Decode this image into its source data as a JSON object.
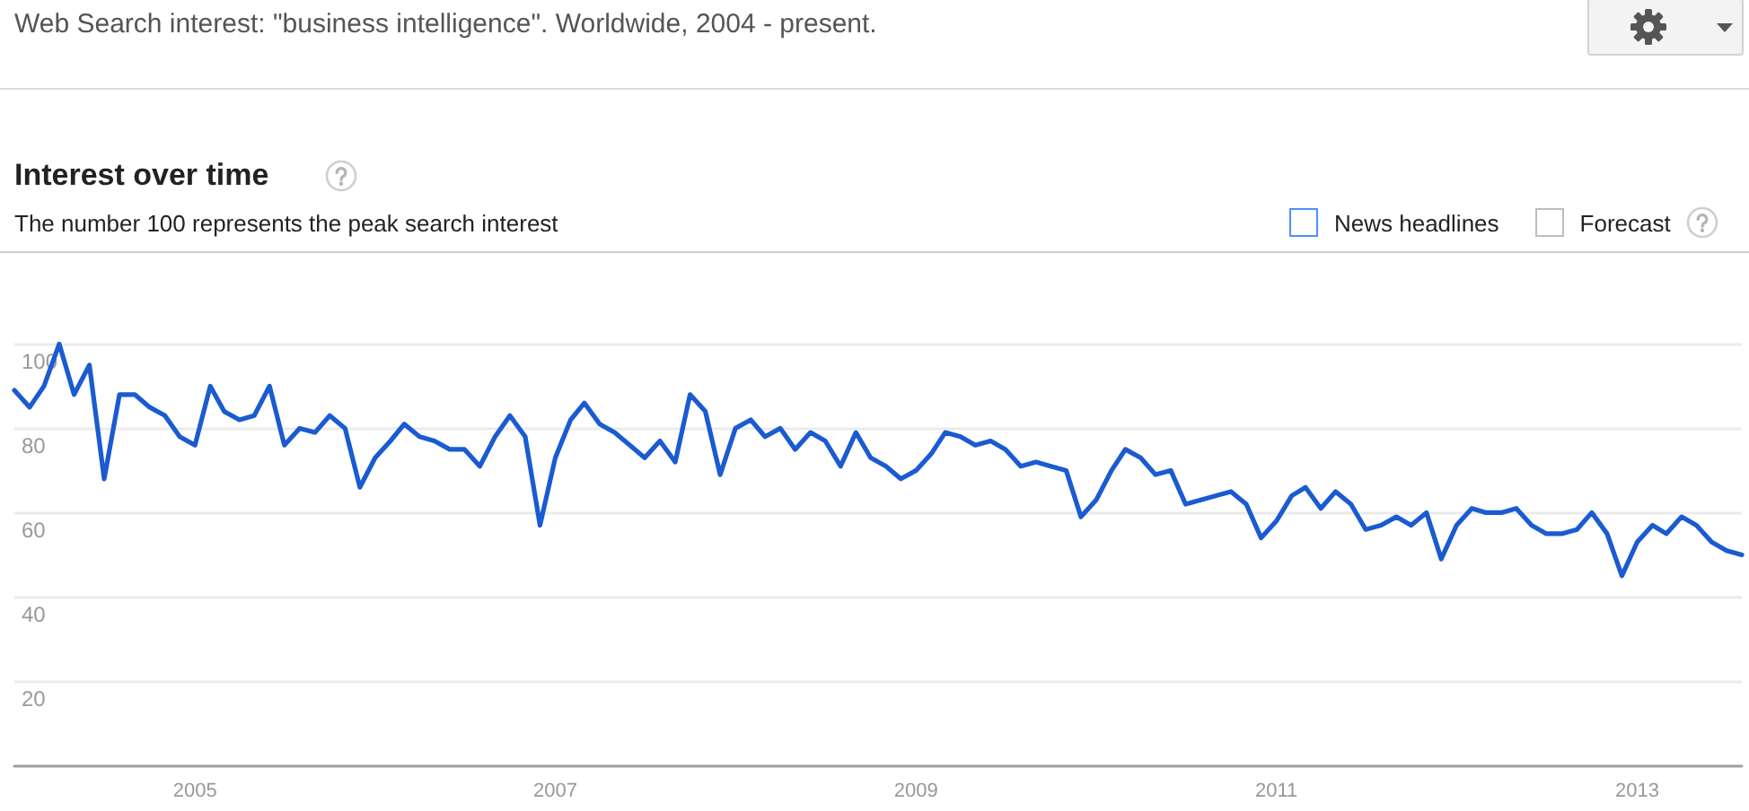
{
  "chart_data": {
    "type": "line",
    "title": "Interest over time",
    "subtitle": "The number 100 represents the peak search interest",
    "annotations": [
      "Web Search interest: \"business intelligence\". Worldwide, 2004 - present.",
      "News headlines",
      "Forecast"
    ],
    "x": [
      "2004-01",
      "2004-02",
      "2004-03",
      "2004-04",
      "2004-05",
      "2004-06",
      "2004-07",
      "2004-08",
      "2004-09",
      "2004-10",
      "2004-11",
      "2004-12",
      "2005-01",
      "2005-02",
      "2005-03",
      "2005-04",
      "2005-05",
      "2005-06",
      "2005-07",
      "2005-08",
      "2005-09",
      "2005-10",
      "2005-11",
      "2005-12",
      "2006-01",
      "2006-02",
      "2006-03",
      "2006-04",
      "2006-05",
      "2006-06",
      "2006-07",
      "2006-08",
      "2006-09",
      "2006-10",
      "2006-11",
      "2006-12",
      "2007-01",
      "2007-02",
      "2007-03",
      "2007-04",
      "2007-05",
      "2007-06",
      "2007-07",
      "2007-08",
      "2007-09",
      "2007-10",
      "2007-11",
      "2007-12",
      "2008-01",
      "2008-02",
      "2008-03",
      "2008-04",
      "2008-05",
      "2008-06",
      "2008-07",
      "2008-08",
      "2008-09",
      "2008-10",
      "2008-11",
      "2008-12",
      "2009-01",
      "2009-02",
      "2009-03",
      "2009-04",
      "2009-05",
      "2009-06",
      "2009-07",
      "2009-08",
      "2009-09",
      "2009-10",
      "2009-11",
      "2009-12",
      "2010-01",
      "2010-02",
      "2010-03",
      "2010-04",
      "2010-05",
      "2010-06",
      "2010-07",
      "2010-08",
      "2010-09",
      "2010-10",
      "2010-11",
      "2010-12",
      "2011-01",
      "2011-02",
      "2011-03",
      "2011-04",
      "2011-05",
      "2011-06",
      "2011-07",
      "2011-08",
      "2011-09",
      "2011-10",
      "2011-11",
      "2011-12",
      "2012-01",
      "2012-02",
      "2012-03",
      "2012-04",
      "2012-05",
      "2012-06",
      "2012-07",
      "2012-08",
      "2012-09",
      "2012-10",
      "2012-11",
      "2012-12",
      "2013-01",
      "2013-02",
      "2013-03",
      "2013-04",
      "2013-05",
      "2013-06",
      "2013-07",
      "2013-08"
    ],
    "values": [
      89,
      85,
      90,
      100,
      88,
      95,
      68,
      88,
      88,
      85,
      83,
      78,
      76,
      90,
      84,
      82,
      83,
      90,
      76,
      80,
      79,
      83,
      80,
      66,
      73,
      77,
      81,
      78,
      77,
      75,
      75,
      71,
      78,
      83,
      78,
      57,
      73,
      82,
      86,
      81,
      79,
      76,
      73,
      77,
      72,
      88,
      84,
      69,
      80,
      82,
      78,
      80,
      75,
      79,
      77,
      71,
      79,
      73,
      71,
      68,
      70,
      74,
      79,
      78,
      76,
      77,
      75,
      71,
      72,
      71,
      70,
      59,
      63,
      70,
      75,
      73,
      69,
      70,
      62,
      63,
      64,
      65,
      62,
      54,
      58,
      64,
      66,
      61,
      65,
      62,
      56,
      57,
      59,
      57,
      60,
      49,
      57,
      61,
      60,
      60,
      61,
      57,
      55,
      55,
      56,
      60,
      55,
      45,
      53,
      57,
      55,
      59,
      57,
      53,
      51,
      50
    ],
    "color": "#1a5bd0",
    "xlim": [
      "2004-01",
      "2013-08"
    ],
    "xticks": [
      "2005",
      "2007",
      "2009",
      "2011",
      "2013"
    ],
    "ylim": [
      0,
      100
    ],
    "yticks": [
      20,
      40,
      60,
      80,
      100
    ],
    "grid": "y",
    "marker": "none",
    "line_style": "solid"
  }
}
